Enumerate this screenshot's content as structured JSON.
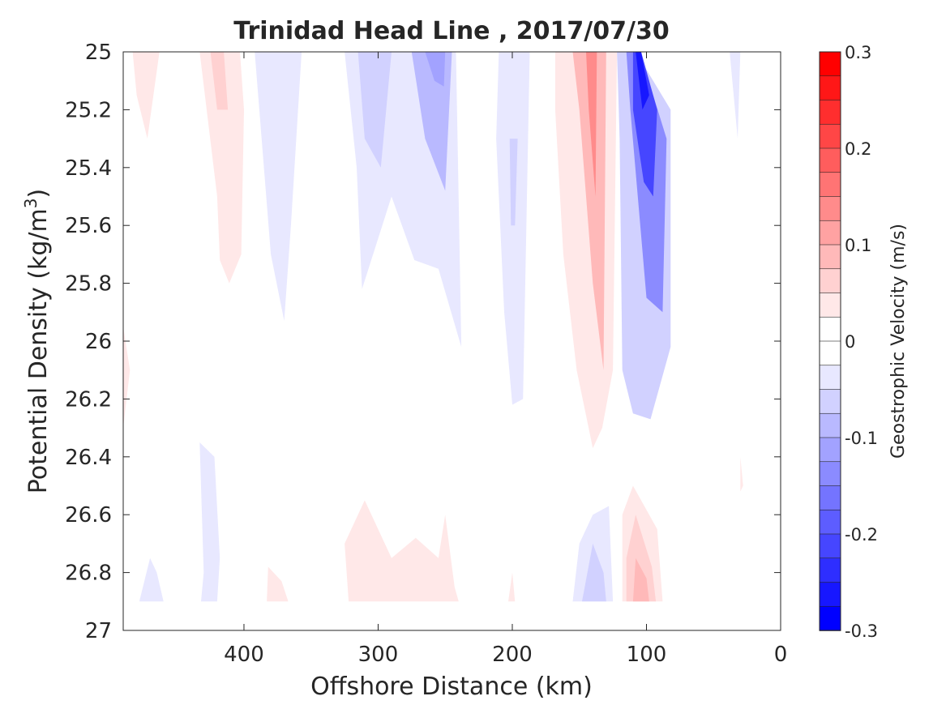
{
  "chart_data": {
    "type": "heatmap",
    "subtype": "filled-contour",
    "title": "Trinidad Head Line , 2017/07/30",
    "xlabel": "Offshore Distance (km)",
    "ylabel_main": "Potential Density (kg/m",
    "ylabel_sup": "3",
    "ylabel_close": ")",
    "xlim": [
      490,
      0
    ],
    "x_reversed": true,
    "ylim": [
      25,
      27
    ],
    "y_reversed": true,
    "x_ticks": [
      400,
      300,
      200,
      100,
      0
    ],
    "x_tick_labels": [
      "400",
      "300",
      "200",
      "100",
      "0"
    ],
    "y_ticks": [
      25,
      25.2,
      25.4,
      25.6,
      25.8,
      26,
      26.2,
      26.4,
      26.6,
      26.8,
      27
    ],
    "y_tick_labels": [
      "25",
      "25.2",
      "25.4",
      "25.6",
      "25.8",
      "26",
      "26.2",
      "26.4",
      "26.6",
      "26.8",
      "27"
    ],
    "grid": false,
    "colorbar": {
      "label": "Geostrophic Velocity (m/s)",
      "clim": [
        -0.3,
        0.3
      ],
      "levels": 24,
      "step": 0.025,
      "tick_values": [
        0.3,
        0.2,
        0.1,
        0,
        -0.1,
        -0.2,
        -0.3
      ],
      "tick_labels": [
        "0.3",
        "0.2",
        "0.1",
        "0",
        "-0.1",
        "-0.2",
        "-0.3"
      ],
      "positive_color": "#ff0000",
      "negative_color": "#0000ff",
      "neutral_color": "#ffffff"
    },
    "features": [
      {
        "id": "pos-a",
        "value": 0.05,
        "polygon": [
          [
            483,
            25
          ],
          [
            463,
            25
          ],
          [
            472,
            25.3
          ],
          [
            480,
            25.15
          ]
        ]
      },
      {
        "id": "pos-b",
        "value": 0.05,
        "polygon": [
          [
            455,
            25
          ],
          [
            433,
            25
          ],
          [
            420,
            25.5
          ],
          [
            418,
            25.72
          ],
          [
            411,
            25.8
          ],
          [
            402,
            25.7
          ],
          [
            400,
            25.2
          ],
          [
            403,
            25
          ],
          [
            420,
            25
          ]
        ]
      },
      {
        "id": "pos-c",
        "value": 0.075,
        "polygon": [
          [
            425,
            25
          ],
          [
            415,
            25
          ],
          [
            412,
            25.2
          ],
          [
            420,
            25.2
          ]
        ]
      },
      {
        "id": "pos-d",
        "value": 0.05,
        "polygon": [
          [
            490,
            25.95
          ],
          [
            485,
            26.1
          ],
          [
            490,
            26.3
          ]
        ]
      },
      {
        "id": "neg-a",
        "value": -0.05,
        "polygon": [
          [
            392,
            25
          ],
          [
            357,
            25
          ],
          [
            365,
            25.6
          ],
          [
            370,
            25.93
          ],
          [
            380,
            25.7
          ]
        ]
      },
      {
        "id": "neg-b",
        "value": -0.05,
        "polygon": [
          [
            325,
            25
          ],
          [
            242,
            25
          ],
          [
            238,
            26.02
          ],
          [
            255,
            25.75
          ],
          [
            273,
            25.72
          ],
          [
            290,
            25.5
          ],
          [
            312,
            25.82
          ],
          [
            316,
            25.4
          ]
        ]
      },
      {
        "id": "neg-c",
        "value": -0.075,
        "polygon": [
          [
            315,
            25
          ],
          [
            290,
            25
          ],
          [
            298,
            25.4
          ],
          [
            310,
            25.3
          ]
        ]
      },
      {
        "id": "neg-d",
        "value": -0.1,
        "polygon": [
          [
            275,
            25
          ],
          [
            245,
            25
          ],
          [
            250,
            25.48
          ],
          [
            265,
            25.3
          ]
        ]
      },
      {
        "id": "neg-e",
        "value": -0.125,
        "polygon": [
          [
            265,
            25
          ],
          [
            250,
            25
          ],
          [
            251,
            25.12
          ],
          [
            258,
            25.1
          ]
        ]
      },
      {
        "id": "neg-f",
        "value": -0.05,
        "polygon": [
          [
            210,
            25
          ],
          [
            187,
            25
          ],
          [
            192,
            26.2
          ],
          [
            200,
            26.22
          ],
          [
            206,
            25.9
          ],
          [
            212,
            25.3
          ]
        ]
      },
      {
        "id": "neg-g",
        "value": -0.075,
        "polygon": [
          [
            202,
            25.3
          ],
          [
            196,
            25.3
          ],
          [
            198,
            25.6
          ],
          [
            201,
            25.6
          ]
        ]
      },
      {
        "id": "pos-e",
        "value": 0.05,
        "polygon": [
          [
            168,
            25
          ],
          [
            122,
            25
          ],
          [
            125,
            26.1
          ],
          [
            133,
            26.3
          ],
          [
            140,
            26.37
          ],
          [
            152,
            26.1
          ],
          [
            162,
            25.7
          ],
          [
            168,
            25.2
          ]
        ]
      },
      {
        "id": "pos-f",
        "value": 0.1,
        "polygon": [
          [
            155,
            25
          ],
          [
            130,
            25
          ],
          [
            132,
            26.1
          ],
          [
            140,
            25.8
          ],
          [
            150,
            25.2
          ]
        ]
      },
      {
        "id": "pos-g",
        "value": 0.15,
        "polygon": [
          [
            145,
            25
          ],
          [
            137,
            25
          ],
          [
            138,
            25.5
          ],
          [
            143,
            25.2
          ]
        ]
      },
      {
        "id": "neg-h",
        "value": -0.075,
        "polygon": [
          [
            122,
            25
          ],
          [
            108,
            25
          ],
          [
            82,
            25.2
          ],
          [
            82,
            26.02
          ],
          [
            97,
            26.27
          ],
          [
            110,
            26.25
          ],
          [
            118,
            26.1
          ],
          [
            120,
            25.3
          ]
        ]
      },
      {
        "id": "neg-i",
        "value": -0.15,
        "polygon": [
          [
            115,
            25
          ],
          [
            105,
            25
          ],
          [
            85,
            25.3
          ],
          [
            88,
            25.9
          ],
          [
            100,
            25.85
          ],
          [
            112,
            25.2
          ]
        ]
      },
      {
        "id": "neg-j",
        "value": -0.225,
        "polygon": [
          [
            110,
            25
          ],
          [
            104,
            25
          ],
          [
            92,
            25.2
          ],
          [
            95,
            25.5
          ],
          [
            102,
            25.45
          ],
          [
            110,
            25.2
          ]
        ]
      },
      {
        "id": "neg-k",
        "value": -0.275,
        "polygon": [
          [
            108,
            25
          ],
          [
            104,
            25
          ],
          [
            98,
            25.15
          ],
          [
            103,
            25.2
          ]
        ]
      },
      {
        "id": "neg-l",
        "value": -0.05,
        "polygon": [
          [
            38,
            25
          ],
          [
            30,
            25
          ],
          [
            32,
            25.3
          ]
        ]
      },
      {
        "id": "neg-m",
        "value": -0.05,
        "polygon": [
          [
            433,
            26.35
          ],
          [
            422,
            26.4
          ],
          [
            418,
            26.75
          ],
          [
            420,
            26.9
          ],
          [
            432,
            26.9
          ],
          [
            430,
            26.8
          ]
        ]
      },
      {
        "id": "neg-n",
        "value": -0.05,
        "polygon": [
          [
            478,
            26.9
          ],
          [
            470,
            26.75
          ],
          [
            465,
            26.8
          ],
          [
            460,
            26.9
          ]
        ]
      },
      {
        "id": "pos-h",
        "value": 0.05,
        "polygon": [
          [
            383,
            26.9
          ],
          [
            382,
            26.78
          ],
          [
            372,
            26.83
          ],
          [
            367,
            26.9
          ]
        ]
      },
      {
        "id": "pos-i",
        "value": 0.05,
        "polygon": [
          [
            322,
            26.9
          ],
          [
            325,
            26.7
          ],
          [
            310,
            26.55
          ],
          [
            290,
            26.75
          ],
          [
            272,
            26.68
          ],
          [
            255,
            26.75
          ],
          [
            250,
            26.6
          ],
          [
            243,
            26.85
          ],
          [
            240,
            26.9
          ]
        ]
      },
      {
        "id": "pos-j",
        "value": 0.05,
        "polygon": [
          [
            203,
            26.9
          ],
          [
            200,
            26.8
          ],
          [
            198,
            26.9
          ]
        ]
      },
      {
        "id": "neg-o",
        "value": -0.05,
        "polygon": [
          [
            155,
            26.9
          ],
          [
            150,
            26.7
          ],
          [
            140,
            26.6
          ],
          [
            128,
            26.57
          ],
          [
            125,
            26.9
          ]
        ]
      },
      {
        "id": "neg-p",
        "value": -0.075,
        "polygon": [
          [
            148,
            26.9
          ],
          [
            140,
            26.7
          ],
          [
            132,
            26.8
          ],
          [
            130,
            26.9
          ]
        ]
      },
      {
        "id": "pos-k",
        "value": 0.05,
        "polygon": [
          [
            118,
            26.9
          ],
          [
            118,
            26.6
          ],
          [
            110,
            26.5
          ],
          [
            92,
            26.65
          ],
          [
            88,
            26.9
          ]
        ]
      },
      {
        "id": "pos-l",
        "value": 0.075,
        "polygon": [
          [
            115,
            26.9
          ],
          [
            115,
            26.75
          ],
          [
            108,
            26.6
          ],
          [
            96,
            26.78
          ],
          [
            93,
            26.9
          ]
        ]
      },
      {
        "id": "pos-m",
        "value": 0.1,
        "polygon": [
          [
            110,
            26.9
          ],
          [
            108,
            26.75
          ],
          [
            100,
            26.82
          ],
          [
            98,
            26.9
          ]
        ]
      },
      {
        "id": "pos-n",
        "value": 0.05,
        "polygon": [
          [
            30,
            26.4
          ],
          [
            28,
            26.5
          ],
          [
            30,
            26.52
          ]
        ]
      }
    ]
  }
}
